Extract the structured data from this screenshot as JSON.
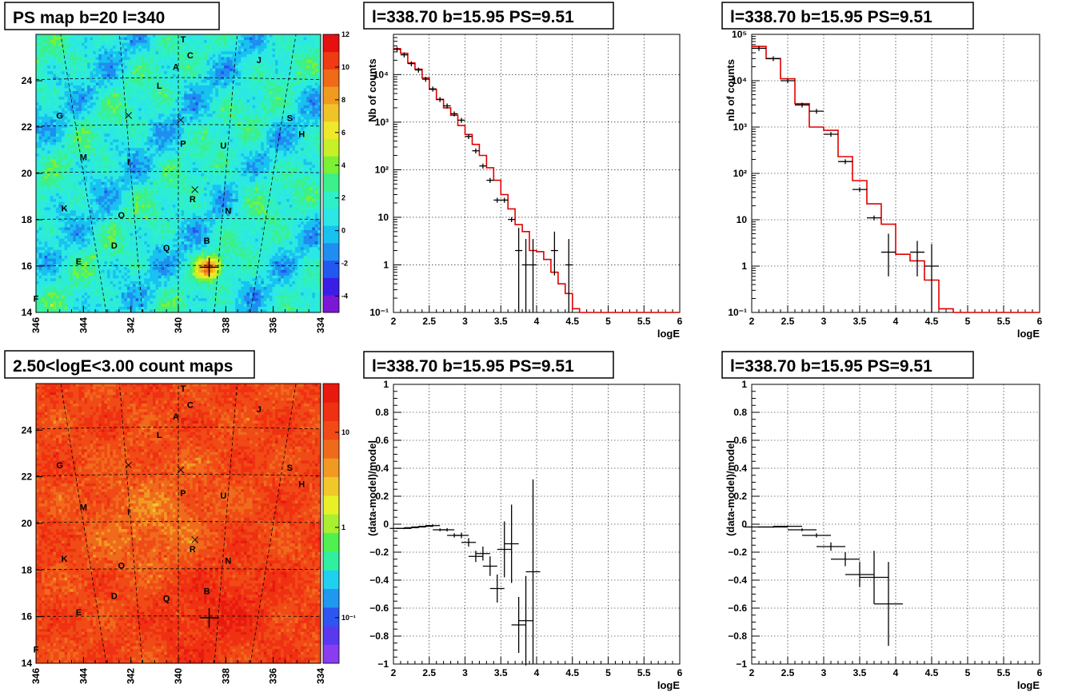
{
  "panels": {
    "map1_title": "PS map b=20 l=340",
    "map2_title": "2.50<logE<3.00 count maps",
    "spec1_title": "l=338.70 b=15.95 PS=9.51",
    "spec2_title": "l=338.70 b=15.95 PS=9.51",
    "res1_title": "l=338.70 b=15.95 PS=9.51",
    "res2_title": "l=338.70 b=15.95 PS=9.51"
  },
  "map_axes": {
    "x_ticks": [
      "346",
      "344",
      "342",
      "340",
      "338",
      "336",
      "334"
    ],
    "y_ticks": [
      "14",
      "16",
      "18",
      "20",
      "22",
      "24"
    ]
  },
  "map1_colorbar": {
    "ticks": [
      "12",
      "10",
      "8",
      "6",
      "4",
      "2",
      "0",
      "-2",
      "-4"
    ]
  },
  "map2_colorbar": {
    "ticks": [
      "10",
      "1",
      "10⁻¹"
    ]
  },
  "sources": [
    {
      "label": "T",
      "l": 339.8,
      "b": 25.8
    },
    {
      "label": "C",
      "l": 339.5,
      "b": 25.1
    },
    {
      "label": "J",
      "l": 336.6,
      "b": 24.9
    },
    {
      "label": "A",
      "l": 340.1,
      "b": 24.6
    },
    {
      "label": "L",
      "l": 340.8,
      "b": 23.8
    },
    {
      "label": "G",
      "l": 345.0,
      "b": 22.5
    },
    {
      "label": "S",
      "l": 335.3,
      "b": 22.4
    },
    {
      "label": "H",
      "l": 334.8,
      "b": 21.7
    },
    {
      "label": "P",
      "l": 339.8,
      "b": 21.3
    },
    {
      "label": "U",
      "l": 338.1,
      "b": 21.2
    },
    {
      "label": "M",
      "l": 344.0,
      "b": 20.7
    },
    {
      "label": "I",
      "l": 342.1,
      "b": 20.5
    },
    {
      "label": "R",
      "l": 339.4,
      "b": 18.9
    },
    {
      "label": "K",
      "l": 344.8,
      "b": 18.5
    },
    {
      "label": "N",
      "l": 337.9,
      "b": 18.4
    },
    {
      "label": "O",
      "l": 342.4,
      "b": 18.2
    },
    {
      "label": "B",
      "l": 338.8,
      "b": 17.1
    },
    {
      "label": "D",
      "l": 342.7,
      "b": 16.9
    },
    {
      "label": "Q",
      "l": 340.5,
      "b": 16.8
    },
    {
      "label": "E",
      "l": 344.2,
      "b": 16.2
    },
    {
      "label": "F",
      "l": 346.0,
      "b": 14.6
    }
  ],
  "crosses": [
    {
      "l": 342.1,
      "b": 22.5
    },
    {
      "l": 339.9,
      "b": 22.3
    },
    {
      "l": 339.3,
      "b": 19.3
    }
  ],
  "ps_position": {
    "l": 338.7,
    "b": 15.95
  },
  "chart_data": [
    {
      "type": "line",
      "panel": "spectrum_left",
      "title": "l=338.70 b=15.95 PS=9.51",
      "xlabel": "logE",
      "ylabel": "Nb of counts",
      "xlim": [
        2,
        6
      ],
      "ylim": [
        0.1,
        70000
      ],
      "log_y": true,
      "x_ticks": [
        "2",
        "2.5",
        "3",
        "3.5",
        "4",
        "4.5",
        "5",
        "5.5",
        "6"
      ],
      "y_ticks": [
        "10⁻¹",
        "1",
        "10",
        "10²",
        "10³",
        "10⁴"
      ],
      "grid": true,
      "model_step": {
        "edges": [
          2.0,
          2.1,
          2.2,
          2.3,
          2.4,
          2.5,
          2.6,
          2.7,
          2.8,
          2.9,
          3.0,
          3.1,
          3.2,
          3.3,
          3.4,
          3.5,
          3.6,
          3.7,
          3.8,
          3.9,
          4.0,
          4.1,
          4.2,
          4.3,
          4.4,
          4.5,
          4.6,
          6.0
        ],
        "values": [
          35000,
          28000,
          17500,
          13000,
          8500,
          4900,
          3000,
          2000,
          1400,
          850,
          550,
          340,
          200,
          110,
          60,
          30,
          15,
          7,
          5,
          2,
          1.9,
          1.3,
          0.7,
          0.4,
          0.25,
          0.12,
          0.1
        ]
      },
      "data_points": [
        {
          "x": 2.05,
          "y": 34000
        },
        {
          "x": 2.15,
          "y": 26000
        },
        {
          "x": 2.25,
          "y": 17000
        },
        {
          "x": 2.35,
          "y": 12500
        },
        {
          "x": 2.45,
          "y": 8000
        },
        {
          "x": 2.55,
          "y": 5000
        },
        {
          "x": 2.65,
          "y": 3000
        },
        {
          "x": 2.75,
          "y": 2200
        },
        {
          "x": 2.85,
          "y": 1500
        },
        {
          "x": 2.95,
          "y": 1100
        },
        {
          "x": 3.05,
          "y": 500
        },
        {
          "x": 3.15,
          "y": 250
        },
        {
          "x": 3.25,
          "y": 120
        },
        {
          "x": 3.35,
          "y": 60
        },
        {
          "x": 3.45,
          "y": 23
        },
        {
          "x": 3.55,
          "y": 23
        },
        {
          "x": 3.65,
          "y": 9
        },
        {
          "x": 3.75,
          "y": 2,
          "ylo": 0.1,
          "yhi": 6
        },
        {
          "x": 3.85,
          "y": 1,
          "ylo": 0.1,
          "yhi": 3.5
        },
        {
          "x": 3.95,
          "y": 1,
          "ylo": 0.1,
          "yhi": 3.5
        },
        {
          "x": 4.25,
          "y": 2,
          "ylo": 0.6,
          "yhi": 5
        },
        {
          "x": 4.45,
          "y": 1,
          "ylo": 0.1,
          "yhi": 3.5
        }
      ]
    },
    {
      "type": "line",
      "panel": "spectrum_right",
      "title": "l=338.70 b=15.95 PS=9.51",
      "xlabel": "logE",
      "ylabel": "nb of counts",
      "xlim": [
        2,
        6
      ],
      "ylim": [
        0.1,
        100000
      ],
      "log_y": true,
      "x_ticks": [
        "2",
        "2.5",
        "3",
        "3.5",
        "4",
        "4.5",
        "5",
        "5.5",
        "6"
      ],
      "y_ticks": [
        "10⁻¹",
        "1",
        "10",
        "10²",
        "10³",
        "10⁴",
        "10⁵"
      ],
      "grid": true,
      "model_step": {
        "edges": [
          2.0,
          2.2,
          2.4,
          2.6,
          2.8,
          3.0,
          3.2,
          3.4,
          3.6,
          3.8,
          4.0,
          4.2,
          4.4,
          4.6,
          4.8,
          6.0
        ],
        "values": [
          55000,
          30000,
          11000,
          3200,
          1000,
          850,
          230,
          70,
          22,
          8,
          1.8,
          1.3,
          0.5,
          0.12,
          0.1
        ]
      },
      "data_points": [
        {
          "x": 2.1,
          "y": 50000
        },
        {
          "x": 2.3,
          "y": 30000
        },
        {
          "x": 2.5,
          "y": 10000
        },
        {
          "x": 2.7,
          "y": 3000
        },
        {
          "x": 2.9,
          "y": 2200
        },
        {
          "x": 3.1,
          "y": 700
        },
        {
          "x": 3.3,
          "y": 180
        },
        {
          "x": 3.5,
          "y": 45
        },
        {
          "x": 3.7,
          "y": 11
        },
        {
          "x": 3.9,
          "y": 2,
          "ylo": 0.6,
          "yhi": 5
        },
        {
          "x": 4.3,
          "y": 2,
          "ylo": 0.6,
          "yhi": 3.5
        },
        {
          "x": 4.5,
          "y": 1,
          "ylo": 0.1,
          "yhi": 3
        }
      ]
    },
    {
      "type": "scatter",
      "panel": "residual_left",
      "title": "l=338.70 b=15.95 PS=9.51",
      "xlabel": "logE",
      "ylabel": "(data-model)/model",
      "xlim": [
        2,
        6
      ],
      "ylim": [
        -1,
        1
      ],
      "x_ticks": [
        "2",
        "2.5",
        "3",
        "3.5",
        "4",
        "4.5",
        "5",
        "5.5",
        "6"
      ],
      "y_ticks": [
        "−1",
        "−0.8",
        "−0.6",
        "−0.4",
        "−0.2",
        "0",
        "0.2",
        "0.4",
        "0.6",
        "0.8",
        "1"
      ],
      "grid": true,
      "data_points": [
        {
          "x": 2.05,
          "y": -0.03,
          "err": 0.005
        },
        {
          "x": 2.15,
          "y": -0.03,
          "err": 0.005
        },
        {
          "x": 2.25,
          "y": -0.025,
          "err": 0.005
        },
        {
          "x": 2.35,
          "y": -0.02,
          "err": 0.005
        },
        {
          "x": 2.45,
          "y": -0.015,
          "err": 0.006
        },
        {
          "x": 2.55,
          "y": -0.01,
          "err": 0.008
        },
        {
          "x": 2.65,
          "y": -0.04,
          "err": 0.01
        },
        {
          "x": 2.75,
          "y": -0.04,
          "err": 0.012
        },
        {
          "x": 2.85,
          "y": -0.08,
          "err": 0.015
        },
        {
          "x": 2.95,
          "y": -0.08,
          "err": 0.02
        },
        {
          "x": 3.05,
          "y": -0.13,
          "err": 0.03
        },
        {
          "x": 3.15,
          "y": -0.23,
          "err": 0.04
        },
        {
          "x": 3.25,
          "y": -0.21,
          "err": 0.05
        },
        {
          "x": 3.35,
          "y": -0.3,
          "err": 0.07
        },
        {
          "x": 3.45,
          "y": -0.46,
          "err": 0.1
        },
        {
          "x": 3.55,
          "y": -0.18,
          "err": 0.2
        },
        {
          "x": 3.65,
          "y": -0.14,
          "err": 0.28
        },
        {
          "x": 3.75,
          "y": -0.72,
          "err": 0.2
        },
        {
          "x": 3.85,
          "y": -0.69,
          "err": 0.32
        },
        {
          "x": 3.95,
          "y": -0.34,
          "err": 0.66
        }
      ]
    },
    {
      "type": "scatter",
      "panel": "residual_right",
      "title": "l=338.70 b=15.95 PS=9.51",
      "xlabel": "logE",
      "ylabel": "(data-model)/model",
      "xlim": [
        2,
        6
      ],
      "ylim": [
        -1,
        1
      ],
      "x_ticks": [
        "2",
        "2.5",
        "3",
        "3.5",
        "4",
        "4.5",
        "5",
        "5.5",
        "6"
      ],
      "y_ticks": [
        "−1",
        "−0.8",
        "−0.6",
        "−0.4",
        "−0.2",
        "0",
        "0.2",
        "0.4",
        "0.6",
        "0.8",
        "1"
      ],
      "grid": true,
      "data_points": [
        {
          "x": 2.1,
          "y": -0.02,
          "err": 0.004
        },
        {
          "x": 2.3,
          "y": -0.02,
          "err": 0.005
        },
        {
          "x": 2.5,
          "y": -0.015,
          "err": 0.006
        },
        {
          "x": 2.7,
          "y": -0.04,
          "err": 0.01
        },
        {
          "x": 2.9,
          "y": -0.08,
          "err": 0.015
        },
        {
          "x": 3.1,
          "y": -0.16,
          "err": 0.03
        },
        {
          "x": 3.3,
          "y": -0.25,
          "err": 0.05
        },
        {
          "x": 3.5,
          "y": -0.36,
          "err": 0.09
        },
        {
          "x": 3.7,
          "y": -0.38,
          "err": 0.19
        },
        {
          "x": 3.9,
          "y": -0.57,
          "err": 0.3
        }
      ]
    }
  ]
}
